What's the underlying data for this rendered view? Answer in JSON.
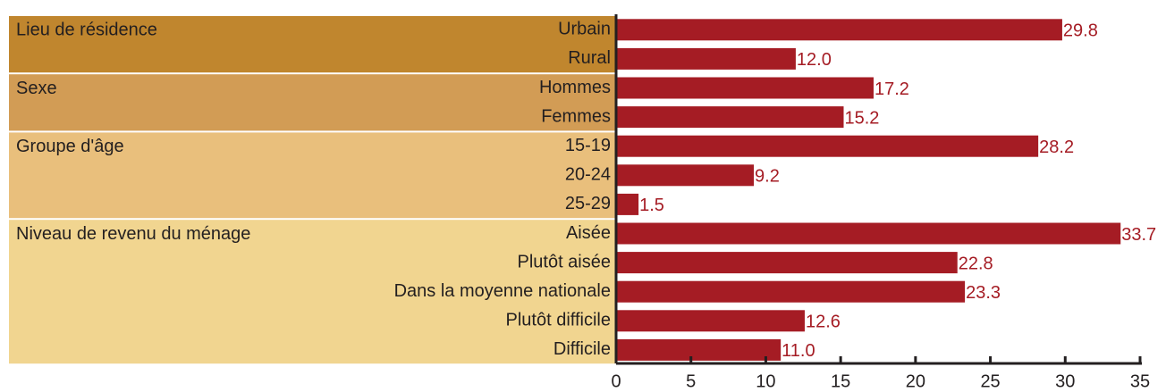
{
  "chart_data": {
    "type": "bar",
    "orientation": "horizontal",
    "color": "#a51c24",
    "xlim": [
      0,
      35
    ],
    "xticks": [
      0,
      5,
      10,
      15,
      20,
      25,
      30,
      35
    ],
    "groups": [
      {
        "name": "Lieu de résidence",
        "color": "#c0862e",
        "categories": [
          "Urbain",
          "Rural"
        ],
        "values": [
          29.8,
          12.0
        ],
        "value_labels": [
          "29.8",
          "12.0"
        ]
      },
      {
        "name": "Sexe",
        "color": "#d29c55",
        "categories": [
          "Hommes",
          "Femmes"
        ],
        "values": [
          17.2,
          15.2
        ],
        "value_labels": [
          "17.2",
          "15.2"
        ]
      },
      {
        "name": "Groupe d'âge",
        "color": "#e9bf7c",
        "categories": [
          "15-19",
          "20-24",
          "25-29"
        ],
        "values": [
          28.2,
          9.2,
          1.5
        ],
        "value_labels": [
          "28.2",
          "9.2",
          "1.5"
        ]
      },
      {
        "name": "Niveau de revenu du ménage",
        "color": "#f1d590",
        "categories": [
          "Aisée",
          "Plutôt aisée",
          "Dans la moyenne nationale",
          "Plutôt difficile",
          "Difficile"
        ],
        "values": [
          33.7,
          22.8,
          23.3,
          12.6,
          11.0
        ],
        "value_labels": [
          "33.7",
          "22.8",
          "23.3",
          "12.6",
          "11.0"
        ]
      }
    ]
  }
}
